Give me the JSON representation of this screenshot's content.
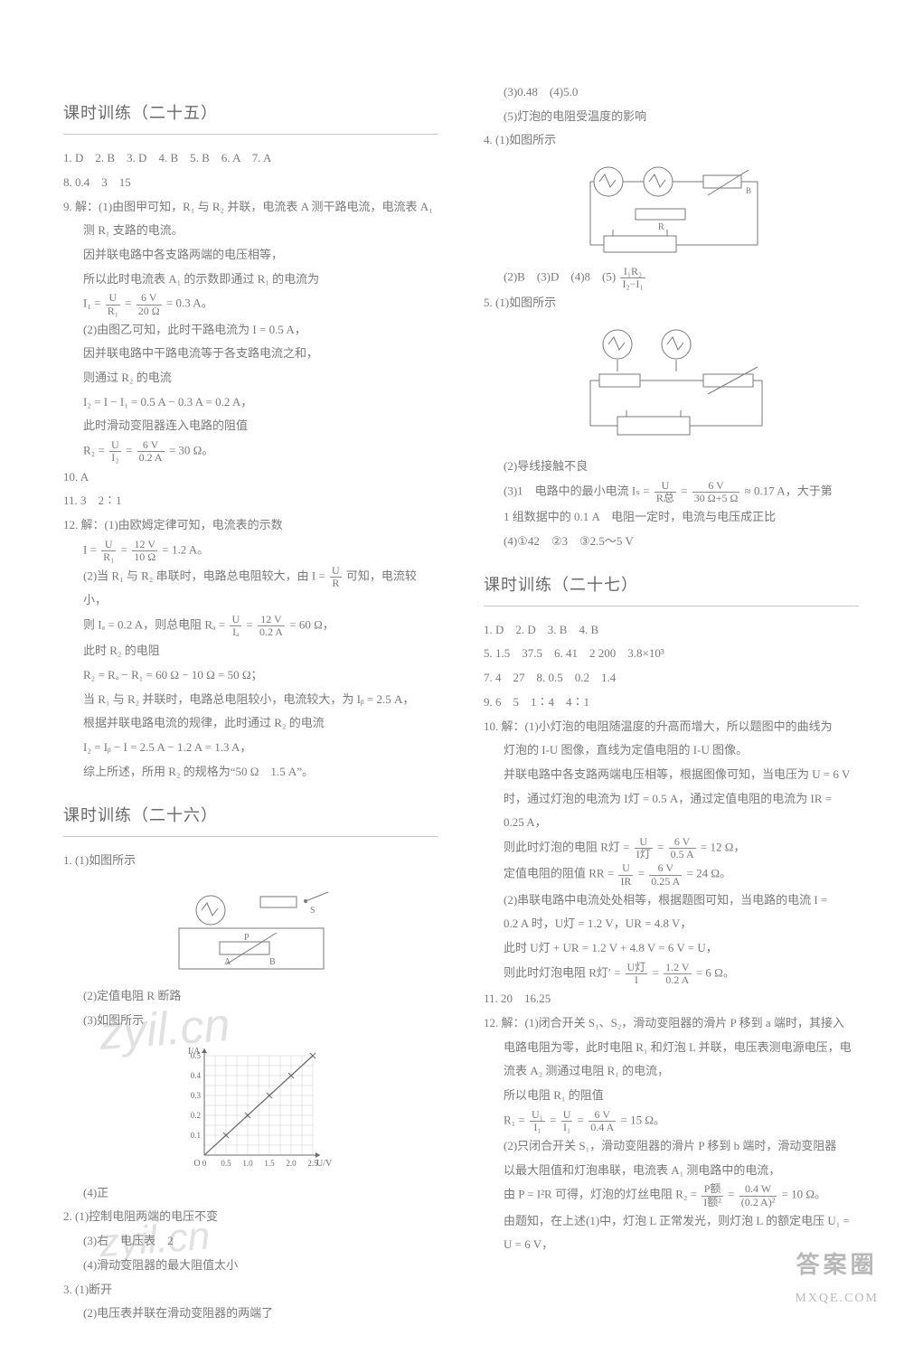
{
  "watermarks": {
    "wm1": "zyil.cn",
    "wm2": "zyil.cn"
  },
  "footer": {
    "line1": "答案圈",
    "line2": "MXQE.COM"
  },
  "left": {
    "s25": {
      "title": "课时训练（二十五）",
      "l1": "1. D　2. B　3. D　4. B　5. B　6. A　7. A",
      "l2": "8. 0.4　3　15",
      "q9": {
        "head": "9. 解：(1)由图甲可知，R₁ 与 R₂ 并联，电流表 A 测干路电流，电流表 A₁",
        "p1": "测 R₁ 支路的电流。",
        "p2": "因并联电路中各支路两端的电压相等，",
        "p3": "所以此时电流表 A₁ 的示数即通过 R₁ 的电流为",
        "eq1_pre": "I₁ = ",
        "eq1_num": "U",
        "eq1_den": "R₁",
        "eq1_mid": " = ",
        "eq1_num2": "6 V",
        "eq1_den2": "20 Ω",
        "eq1_end": " = 0.3 A。",
        "p4": "(2)由图乙可知，此时干路电流为 I = 0.5 A，",
        "p5": "因并联电路中干路电流等于各支路电流之和，",
        "p6": "则通过 R₂ 的电流",
        "p7": "I₂ = I − I₁ = 0.5 A − 0.3 A = 0.2 A，",
        "p8": "此时滑动变阻器连入电路的阻值",
        "eq2_pre": "R₂ = ",
        "eq2_num": "U",
        "eq2_den": "I₂",
        "eq2_mid": " = ",
        "eq2_num2": "6 V",
        "eq2_den2": "0.2 A",
        "eq2_end": " = 30 Ω。"
      },
      "l10": "10. A",
      "l11": "11. 3　2∶1",
      "q12": {
        "head": "12. 解：(1)由欧姆定律可知，电流表的示数",
        "eq1_pre": "I = ",
        "eq1_num": "U",
        "eq1_den": "R₁",
        "eq1_mid": " = ",
        "eq1_num2": "12 V",
        "eq1_den2": "10 Ω",
        "eq1_end": " = 1.2 A。",
        "p1a": "(2)当 R₁ 与 R₂ 串联时，电路总电阻较大，由 I = ",
        "p1_num": "U",
        "p1_den": "R",
        "p1b": " 可知，电流较小，",
        "p2a": "则 Iₐ = 0.2 A，则总电阻 Rₐ = ",
        "p2_num": "U",
        "p2_den": "Iₐ",
        "p2_mid": " = ",
        "p2_num2": "12 V",
        "p2_den2": "0.2 A",
        "p2b": " = 60 Ω，",
        "p3": "此时 R₂ 的电阻",
        "p4": "R₂ = Rₐ − R₁ = 60 Ω − 10 Ω = 50 Ω；",
        "p5": "当 R₁ 与 R₂ 并联时，电路总电阻较小，电流较大，为 Iᵦ = 2.5 A，",
        "p6": "根据并联电路电流的规律，此时通过 R₂ 的电流",
        "p7": "I₂ = Iᵦ − I = 2.5 A − 1.2 A = 1.3 A，",
        "p8": "综上所述，所用 R₂ 的规格为“50 Ω　1.5 A”。"
      }
    },
    "s26": {
      "title": "课时训练（二十六）",
      "q1": {
        "p1": "1. (1)如图所示",
        "p2": "(2)定值电阻 R 断路",
        "p3": "(3)如图所示",
        "p4": "(4)正"
      },
      "chart": {
        "ylabel": "I/A",
        "xlabel": "U/V",
        "yticks": [
          "0.1",
          "0.2",
          "0.3",
          "0.4",
          "0.5"
        ],
        "xticks": [
          "0",
          "0.5",
          "1.0",
          "1.5",
          "2.0",
          "2.5"
        ],
        "points": [
          [
            0.5,
            0.1
          ],
          [
            1.0,
            0.2
          ],
          [
            1.5,
            0.3
          ],
          [
            2.0,
            0.4
          ],
          [
            2.5,
            0.5
          ]
        ],
        "grid_color": "#c9c9c9",
        "axis_color": "#6a6a6a",
        "line_color": "#6a6a6a",
        "bg": "#ffffff"
      },
      "q2": {
        "p1": "2. (1)控制电阻两端的电压不变",
        "p2": "(3)右　电压表　2",
        "p3": "(4)滑动变阻器的最大阻值太小"
      },
      "q3": {
        "p1": "3. (1)断开",
        "p2": "(2)电压表并联在滑动变阻器的两端了"
      }
    }
  },
  "right": {
    "pre": {
      "p1": "(3)0.48　(4)5.0",
      "p2": "(5)灯泡的电阻受温度的影响"
    },
    "q4": {
      "p1": "4. (1)如图所示",
      "p2a": "(2)B　(3)D　(4)8　(5)",
      "frac_num": "I₁R₂",
      "frac_den": "I₂−I₁"
    },
    "q5": {
      "p1": "5. (1)如图所示",
      "p2": "(2)导线接触不良",
      "p3a": "(3)1　电路中的最小电流 Iₛ = ",
      "p3_num": "U",
      "p3_den": "R总",
      "p3_mid": " = ",
      "p3_num2": "6 V",
      "p3_den2": "30 Ω+5 Ω",
      "p3b": " ≈ 0.17 A，大于第",
      "p4": "1 组数据中的 0.1 A　电阻一定时，电流与电压成正比",
      "p5": "(4)①42　②3　③2.5～5 V"
    },
    "s27": {
      "title": "课时训练（二十七）",
      "l1": "1. D　2. D　3. B　4. B",
      "l2": "5. 1.5　37.5　6. 41　2 200　3.8×10³",
      "l3": "7. 4　27　8. 0.5　0.2　1.4",
      "l4": "9. 6　5　1∶4　4∶1",
      "q10": {
        "head": "10. 解：(1)小灯泡的电阻随温度的升高而增大，所以题图中的曲线为",
        "p1": "灯泡的 I-U 图像，直线为定值电阻的 I-U 图像。",
        "p2": "并联电路中各支路两端电压相等，根据图像可知，当电压为 U = 6 V",
        "p3": "时，通过灯泡的电流为 I灯 = 0.5 A，通过定值电阻的电流为 IR =",
        "p4": "0.25 A，",
        "e1_pre": "则此时灯泡的电阻 R灯 = ",
        "e1_num": "U",
        "e1_den": "I灯",
        "e1_mid": " = ",
        "e1_num2": "6 V",
        "e1_den2": "0.5 A",
        "e1_end": " = 12 Ω，",
        "e2_pre": "定值电阻的阻值 RR = ",
        "e2_num": "U",
        "e2_den": "IR",
        "e2_mid": " = ",
        "e2_num2": "6 V",
        "e2_den2": "0.25 A",
        "e2_end": " = 24 Ω。",
        "p5": "(2)串联电路中电流处处相等，根据题图可知，当电路的电流 I =",
        "p6": "0.2 A 时，U灯 = 1.2 V，UR = 4.8 V，",
        "p7": "此时 U灯 + UR = 1.2 V + 4.8 V = 6 V = U，",
        "e3_pre": "则此时灯泡电阻 R灯′ = ",
        "e3_num": "U灯",
        "e3_den": "I",
        "e3_mid": " = ",
        "e3_num2": "1.2 V",
        "e3_den2": "0.2 A",
        "e3_end": " = 6 Ω。"
      },
      "l11": "11. 20　16.25",
      "q12": {
        "head": "12. 解：(1)闭合开关 S₁、S₂，滑动变阻器的滑片 P 移到 a 端时，其接入",
        "p1": "电路电阻为零，此时电阻 R₁ 和灯泡 L 并联，电压表测电源电压，电",
        "p2": "流表 A₂ 测通过电阻 R₁ 的电流，",
        "p3": "所以电阻 R₁ 的阻值",
        "e1_pre": "R₁ = ",
        "e1_num": "U₁",
        "e1_den": "I₁",
        "e1_mid": " = ",
        "e1_num2": "U",
        "e1_den2": "I₁",
        "e1_mid2": " = ",
        "e1_num3": "6 V",
        "e1_den3": "0.4 A",
        "e1_end": " = 15 Ω。",
        "p4": "(2)只闭合开关 S₁，滑动变阻器的滑片 P 移到 b 端时，滑动变阻器",
        "p5": "以最大阻值和灯泡串联，电流表 A₁ 测电路中的电流，",
        "e2_pre": "由 P = I²R 可得，灯泡的灯丝电阻 R₂ = ",
        "e2_num": "P额",
        "e2_den": "I额²",
        "e2_mid": " = ",
        "e2_num2": "0.4 W",
        "e2_den2": "(0.2 A)²",
        "e2_end": " = 10 Ω。",
        "p6": "由题知，在上述(1)中，灯泡 L 正常发光，则灯泡 L 的额定电压 U₁ =",
        "p7": "U = 6 V，"
      }
    }
  }
}
